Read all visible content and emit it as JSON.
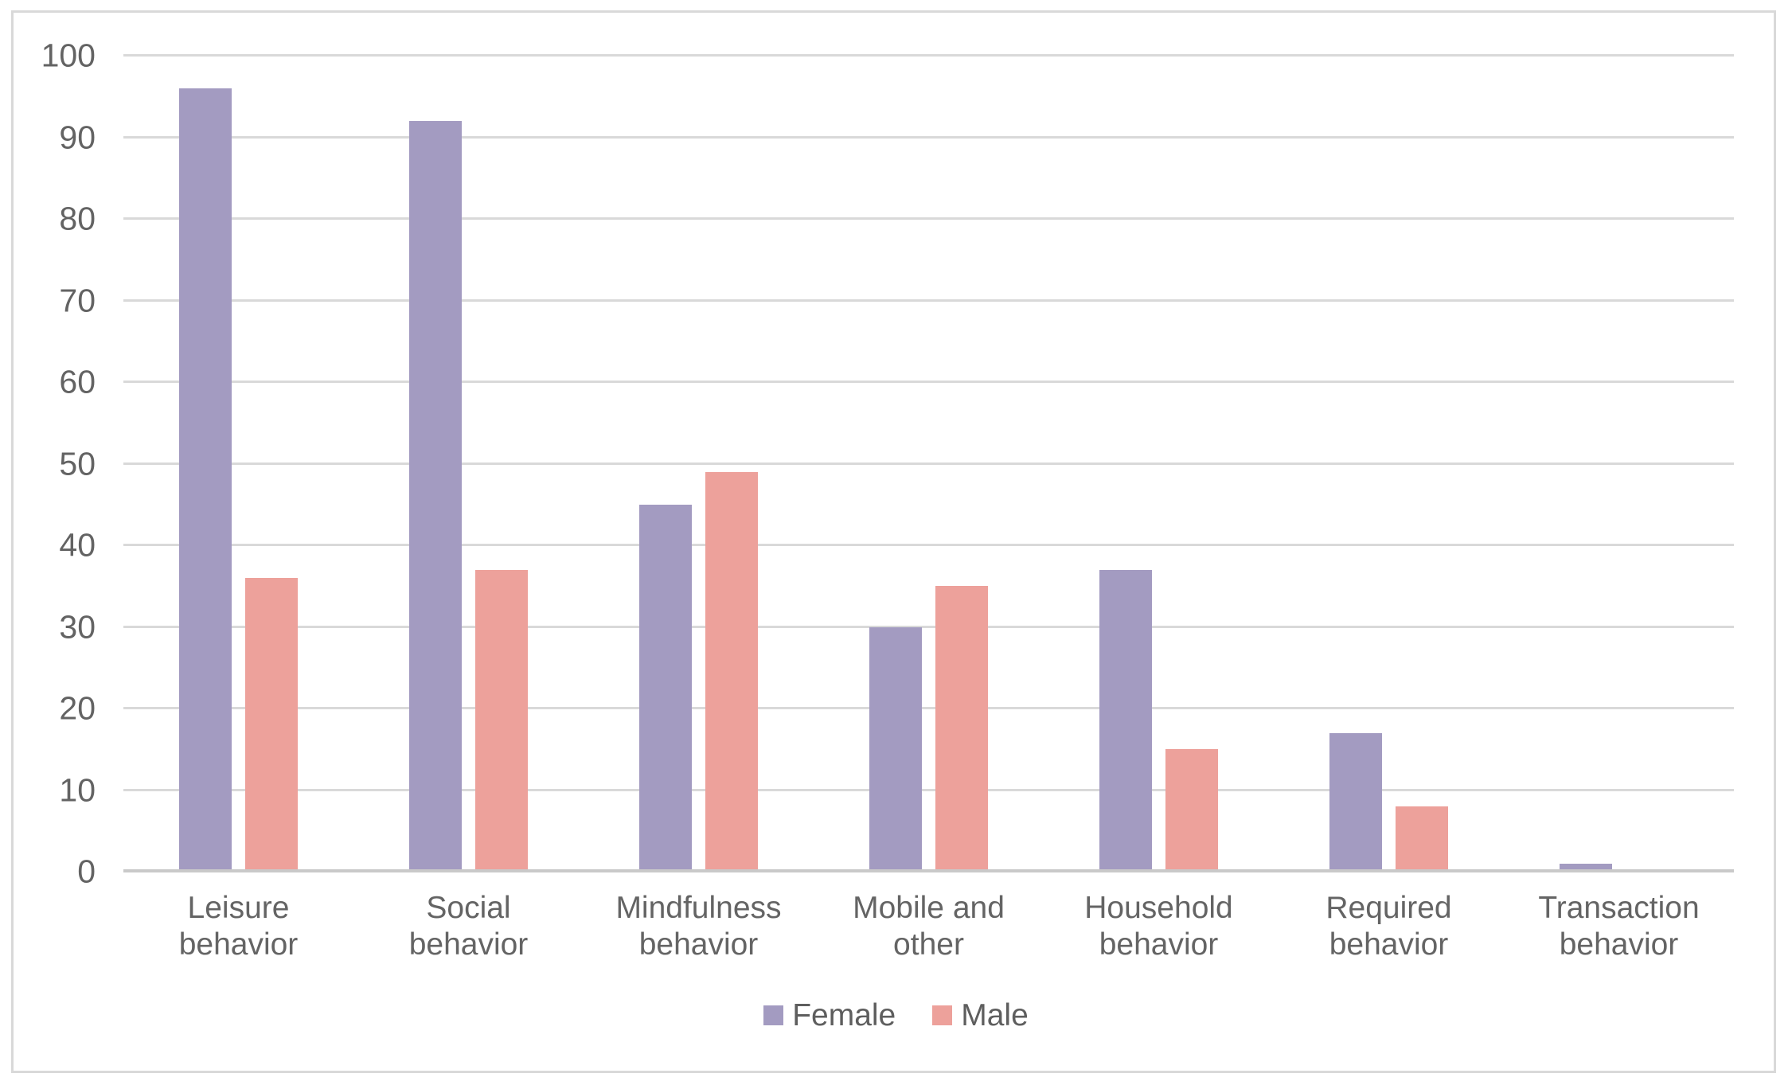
{
  "chart_data": {
    "type": "bar",
    "title": "",
    "xlabel": "",
    "ylabel": "",
    "categories": [
      "Leisure behavior",
      "Social behavior",
      "Mindfulness behavior",
      "Mobile and other",
      "Household behavior",
      "Required behavior",
      "Transaction behavior"
    ],
    "series": [
      {
        "name": "Female",
        "color": "#a39bc1",
        "values": [
          96,
          92,
          45,
          30,
          37,
          17,
          1
        ]
      },
      {
        "name": "Male",
        "color": "#eda19b",
        "values": [
          36,
          37,
          49,
          35,
          15,
          8,
          0
        ]
      }
    ],
    "ylim": [
      0,
      100
    ],
    "yticks": [
      0,
      10,
      20,
      30,
      40,
      50,
      60,
      70,
      80,
      90,
      100
    ],
    "grid": true,
    "legend_position": "bottom"
  },
  "legend": {
    "items": [
      {
        "label": "Female",
        "color": "#a39bc1"
      },
      {
        "label": "Male",
        "color": "#eda19b"
      }
    ]
  },
  "colors": {
    "gridline": "#d9d9d9",
    "axis_line": "#c9c9c9",
    "frame_border": "#d9d9d9",
    "tick_text": "#636363",
    "label_text": "#646464"
  }
}
